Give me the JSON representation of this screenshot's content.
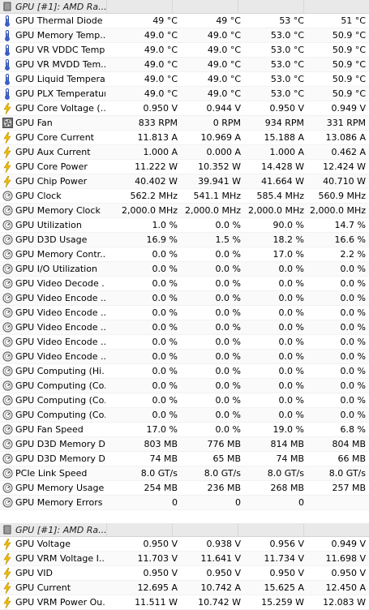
{
  "section1": {
    "title": "GPU [#1]: AMD Ra...",
    "rows": [
      {
        "icon": "thermometer-icon",
        "name": "GPU Thermal Diode",
        "v": [
          "49 °C",
          "49 °C",
          "53 °C",
          "51 °C"
        ]
      },
      {
        "icon": "thermometer-icon",
        "name": "GPU Memory Temp...",
        "v": [
          "49.0 °C",
          "49.0 °C",
          "53.0 °C",
          "50.9 °C"
        ]
      },
      {
        "icon": "thermometer-icon",
        "name": "GPU VR VDDC Temp...",
        "v": [
          "49.0 °C",
          "49.0 °C",
          "53.0 °C",
          "50.9 °C"
        ]
      },
      {
        "icon": "thermometer-icon",
        "name": "GPU VR MVDD Tem...",
        "v": [
          "49.0 °C",
          "49.0 °C",
          "53.0 °C",
          "50.9 °C"
        ]
      },
      {
        "icon": "thermometer-icon",
        "name": "GPU Liquid Tempera...",
        "v": [
          "49.0 °C",
          "49.0 °C",
          "53.0 °C",
          "50.9 °C"
        ]
      },
      {
        "icon": "thermometer-icon",
        "name": "GPU PLX Temperature",
        "v": [
          "49.0 °C",
          "49.0 °C",
          "53.0 °C",
          "50.9 °C"
        ]
      },
      {
        "icon": "bolt-icon",
        "name": "GPU Core Voltage (...",
        "v": [
          "0.950 V",
          "0.944 V",
          "0.950 V",
          "0.949 V"
        ]
      },
      {
        "icon": "fan-icon",
        "name": "GPU Fan",
        "v": [
          "833 RPM",
          "0 RPM",
          "934 RPM",
          "331 RPM"
        ]
      },
      {
        "icon": "bolt-icon",
        "name": "GPU Core Current",
        "v": [
          "11.813 A",
          "10.969 A",
          "15.188 A",
          "13.086 A"
        ]
      },
      {
        "icon": "bolt-icon",
        "name": "GPU Aux Current",
        "v": [
          "1.000 A",
          "0.000 A",
          "1.000 A",
          "0.462 A"
        ]
      },
      {
        "icon": "bolt-icon",
        "name": "GPU Core Power",
        "v": [
          "11.222 W",
          "10.352 W",
          "14.428 W",
          "12.424 W"
        ]
      },
      {
        "icon": "bolt-icon",
        "name": "GPU Chip Power",
        "v": [
          "40.402 W",
          "39.941 W",
          "41.664 W",
          "40.710 W"
        ]
      },
      {
        "icon": "clock-icon",
        "name": "GPU Clock",
        "v": [
          "562.2 MHz",
          "541.1 MHz",
          "585.4 MHz",
          "560.9 MHz"
        ]
      },
      {
        "icon": "clock-icon",
        "name": "GPU Memory Clock",
        "v": [
          "2,000.0 MHz",
          "2,000.0 MHz",
          "2,000.0 MHz",
          "2,000.0 MHz"
        ]
      },
      {
        "icon": "clock-icon",
        "name": "GPU Utilization",
        "v": [
          "1.0 %",
          "0.0 %",
          "90.0 %",
          "14.7 %"
        ]
      },
      {
        "icon": "clock-icon",
        "name": "GPU D3D Usage",
        "v": [
          "16.9 %",
          "1.5 %",
          "18.2 %",
          "16.6 %"
        ]
      },
      {
        "icon": "clock-icon",
        "name": "GPU Memory Contr...",
        "v": [
          "0.0 %",
          "0.0 %",
          "17.0 %",
          "2.2 %"
        ]
      },
      {
        "icon": "clock-icon",
        "name": "GPU I/O Utilization",
        "v": [
          "0.0 %",
          "0.0 %",
          "0.0 %",
          "0.0 %"
        ]
      },
      {
        "icon": "clock-icon",
        "name": "GPU Video Decode ...",
        "v": [
          "0.0 %",
          "0.0 %",
          "0.0 %",
          "0.0 %"
        ]
      },
      {
        "icon": "clock-icon",
        "name": "GPU Video Encode ...",
        "v": [
          "0.0 %",
          "0.0 %",
          "0.0 %",
          "0.0 %"
        ]
      },
      {
        "icon": "clock-icon",
        "name": "GPU Video Encode ...",
        "v": [
          "0.0 %",
          "0.0 %",
          "0.0 %",
          "0.0 %"
        ]
      },
      {
        "icon": "clock-icon",
        "name": "GPU Video Encode ...",
        "v": [
          "0.0 %",
          "0.0 %",
          "0.0 %",
          "0.0 %"
        ]
      },
      {
        "icon": "clock-icon",
        "name": "GPU Video Encode ...",
        "v": [
          "0.0 %",
          "0.0 %",
          "0.0 %",
          "0.0 %"
        ]
      },
      {
        "icon": "clock-icon",
        "name": "GPU Video Encode ...",
        "v": [
          "0.0 %",
          "0.0 %",
          "0.0 %",
          "0.0 %"
        ]
      },
      {
        "icon": "clock-icon",
        "name": "GPU Computing (Hi...",
        "v": [
          "0.0 %",
          "0.0 %",
          "0.0 %",
          "0.0 %"
        ]
      },
      {
        "icon": "clock-icon",
        "name": "GPU Computing (Co...",
        "v": [
          "0.0 %",
          "0.0 %",
          "0.0 %",
          "0.0 %"
        ]
      },
      {
        "icon": "clock-icon",
        "name": "GPU Computing (Co...",
        "v": [
          "0.0 %",
          "0.0 %",
          "0.0 %",
          "0.0 %"
        ]
      },
      {
        "icon": "clock-icon",
        "name": "GPU Computing (Co...",
        "v": [
          "0.0 %",
          "0.0 %",
          "0.0 %",
          "0.0 %"
        ]
      },
      {
        "icon": "clock-icon",
        "name": "GPU Fan Speed",
        "v": [
          "17.0 %",
          "0.0 %",
          "19.0 %",
          "6.8 %"
        ]
      },
      {
        "icon": "clock-icon",
        "name": "GPU D3D Memory D...",
        "v": [
          "803 MB",
          "776 MB",
          "814 MB",
          "804 MB"
        ]
      },
      {
        "icon": "clock-icon",
        "name": "GPU D3D Memory D...",
        "v": [
          "74 MB",
          "65 MB",
          "74 MB",
          "66 MB"
        ]
      },
      {
        "icon": "clock-icon",
        "name": "PCIe Link Speed",
        "v": [
          "8.0 GT/s",
          "8.0 GT/s",
          "8.0 GT/s",
          "8.0 GT/s"
        ]
      },
      {
        "icon": "clock-icon",
        "name": "GPU Memory Usage",
        "v": [
          "254 MB",
          "236 MB",
          "268 MB",
          "257 MB"
        ]
      },
      {
        "icon": "clock-icon",
        "name": "GPU Memory Errors",
        "v": [
          "0",
          "0",
          "0",
          ""
        ]
      }
    ]
  },
  "section2": {
    "title": "GPU [#1]: AMD Ra...",
    "rows": [
      {
        "icon": "bolt-icon",
        "name": "GPU Voltage",
        "v": [
          "0.950 V",
          "0.938 V",
          "0.956 V",
          "0.949 V"
        ]
      },
      {
        "icon": "bolt-icon",
        "name": "GPU VRM Voltage I...",
        "v": [
          "11.703 V",
          "11.641 V",
          "11.734 V",
          "11.698 V"
        ]
      },
      {
        "icon": "bolt-icon",
        "name": "GPU VID",
        "v": [
          "0.950 V",
          "0.950 V",
          "0.950 V",
          "0.950 V"
        ]
      },
      {
        "icon": "bolt-icon",
        "name": "GPU Current",
        "v": [
          "12.695 A",
          "10.742 A",
          "15.625 A",
          "12.450 A"
        ]
      },
      {
        "icon": "bolt-icon",
        "name": "GPU VRM Power Ou...",
        "v": [
          "11.511 W",
          "10.742 W",
          "15.259 W",
          "12.083 W"
        ]
      }
    ]
  },
  "colors": {
    "thermometer": "#3a5fcd",
    "bolt": "#e8b000",
    "header_bg": "#e9e9e9"
  }
}
